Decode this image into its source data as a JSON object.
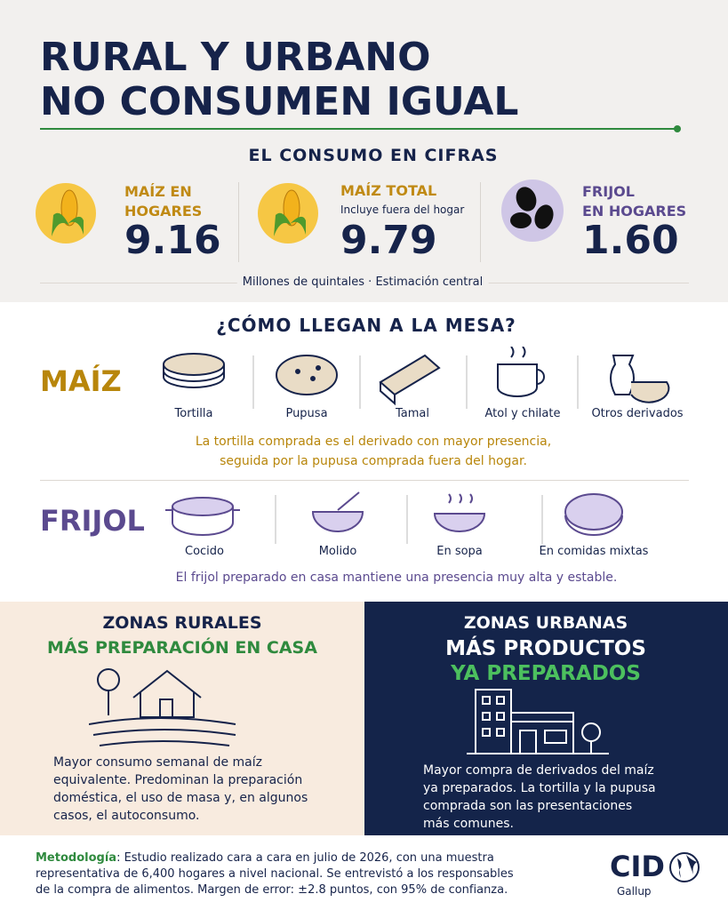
{
  "header": {
    "title_lines": [
      "RURAL Y URBANO",
      "NO CONSUMEN IGUAL"
    ]
  },
  "cifras": {
    "heading": "EL CONSUMO EN CIFRAS",
    "items": [
      {
        "label_lines": [
          "MAÍZ EN",
          "HOGARES"
        ],
        "value": "9.16"
      },
      {
        "label_lines": [
          "MAÍZ TOTAL"
        ],
        "sub": "Incluye fuera del hogar",
        "value": "9.79"
      },
      {
        "label_lines": [
          "FRIJOL",
          "EN HOGARES"
        ],
        "value": "1.60"
      }
    ],
    "note": "Millones de quintales · Estimación central"
  },
  "mesa": {
    "heading": "¿CÓMO LLEGAN A LA MESA?",
    "maiz": {
      "label": "MAÍZ",
      "items": [
        "Tortilla",
        "Pupusa",
        "Tamal",
        "Atol y chilate",
        "Otros derivados"
      ],
      "note_lines": [
        "La tortilla comprada es el derivado con mayor presencia,",
        "seguida por la pupusa comprada fuera del hogar."
      ]
    },
    "frijol": {
      "label": "FRIJOL",
      "items": [
        "Cocido",
        "Molido",
        "En sopa",
        "En comidas mixtas"
      ],
      "note": "El frijol preparado en casa mantiene una presencia muy alta y estable."
    }
  },
  "zonas": {
    "rural": {
      "heading": "ZONAS RURALES",
      "subheading": "MÁS PREPARACIÓN EN CASA",
      "text_lines": [
        "Mayor consumo semanal de maíz",
        "equivalente. Predominan la preparación",
        "doméstica, el uso de masa y, en algunos",
        "casos, el autoconsumo."
      ]
    },
    "urbana": {
      "heading_lines": [
        "ZONAS URBANAS",
        "MÁS PRODUCTOS"
      ],
      "highlight": "YA PREPARADOS",
      "text_lines": [
        "Mayor compra de derivados del maíz",
        "ya preparados. La tortilla y la pupusa",
        "comprada son las presentaciones",
        "más comunes."
      ]
    }
  },
  "footer": {
    "method_label": "Metodología",
    "method_lines": [
      ": Estudio realizado cara a cara en julio de 2026, con una muestra",
      "representativa de 6,400 hogares a nivel nacional. Se entrevistó a los responsables",
      "de la compra de alimentos. Margen de error: ±2.8 puntos, con 95% de confianza."
    ],
    "logo": "CID",
    "logo_sub": "Gallup"
  }
}
